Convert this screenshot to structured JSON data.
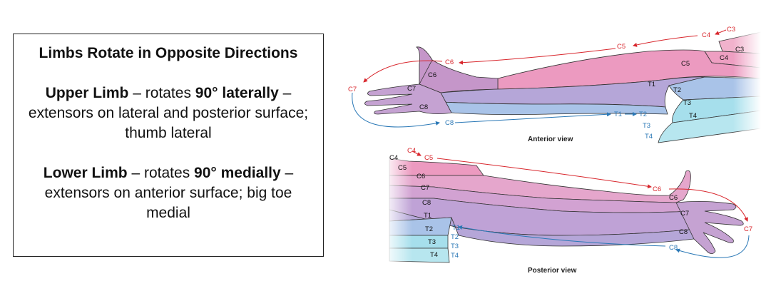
{
  "textbox": {
    "title": "Limbs Rotate in Opposite Directions",
    "upper": {
      "name": "Upper Limb",
      "dash1": " – rotates ",
      "bold": "90° laterally",
      "rest": " – extensors on lateral and posterior surface; thumb lateral"
    },
    "lower": {
      "name": "Lower Limb",
      "dash1": " – rotates ",
      "bold": "90° medially",
      "rest": " – extensors on anterior surface; big toe medial"
    }
  },
  "figure": {
    "anterior_caption": "Anterior view",
    "posterior_caption": "Posterior view",
    "anterior": {
      "red_labels": [
        "C3",
        "C4",
        "C5",
        "C6",
        "C7"
      ],
      "blue_labels": [
        "C8",
        "T1",
        "T2"
      ],
      "zone_labels": [
        "C3",
        "C4",
        "C5",
        "C6",
        "C7",
        "C8",
        "T1",
        "T2",
        "T3",
        "T4"
      ],
      "trunk_labels": [
        "T3",
        "T4"
      ]
    },
    "posterior": {
      "red_labels": [
        "C4",
        "C5",
        "C6",
        "C7"
      ],
      "blue_labels": [
        "T1",
        "T2",
        "T3",
        "T4",
        "C8"
      ],
      "zone_labels": [
        "C4",
        "C5",
        "C6",
        "C7",
        "C8",
        "T1",
        "T2",
        "T3",
        "T4",
        "C6",
        "C7",
        "C8"
      ]
    },
    "colors": {
      "pink": "#ec9ac0",
      "mauve": "#c596c9",
      "lavender": "#b5a6d8",
      "blue": "#a9c3e8",
      "cyan": "#a6dfec",
      "red": "#d8262c",
      "darkblue": "#2a78b6"
    }
  }
}
